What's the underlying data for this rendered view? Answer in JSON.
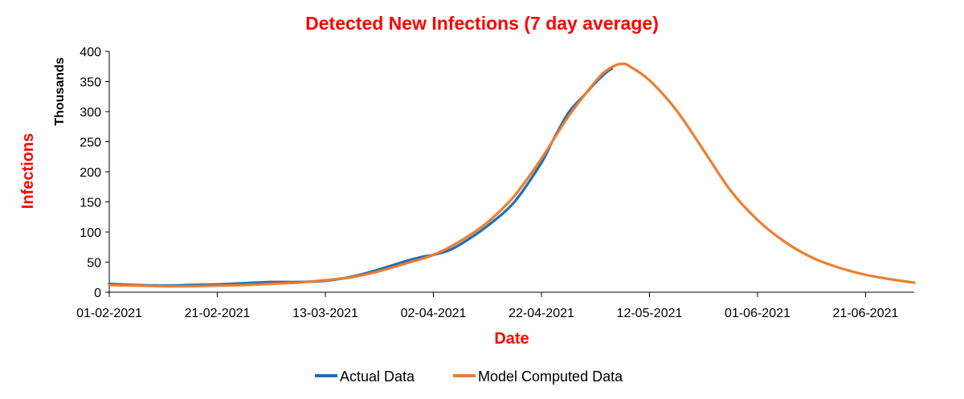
{
  "colors": {
    "title": "#ff0000",
    "axis_title": "#ff0000",
    "actual": "#1f6fb5",
    "model": "#ed7d31",
    "axis": "#000000"
  },
  "chart_data": {
    "type": "line",
    "title": "Detected New Infections (7 day average)",
    "xlabel": "Date",
    "ylabel": "Infections",
    "y_units_label": "Thousands",
    "x_start_date": "01-02-2021",
    "x_end_date": "30-06-2021",
    "x_unit": "days since 01-02-2021",
    "xlim": [
      0,
      149
    ],
    "ylim": [
      0,
      400
    ],
    "yticks": [
      0,
      50,
      100,
      150,
      200,
      250,
      300,
      350,
      400
    ],
    "xticks": [
      {
        "day": 0,
        "label": "01-02-2021"
      },
      {
        "day": 20,
        "label": "21-02-2021"
      },
      {
        "day": 40,
        "label": "13-03-2021"
      },
      {
        "day": 60,
        "label": "02-04-2021"
      },
      {
        "day": 80,
        "label": "22-04-2021"
      },
      {
        "day": 100,
        "label": "12-05-2021"
      },
      {
        "day": 120,
        "label": "01-06-2021"
      },
      {
        "day": 140,
        "label": "21-06-2021"
      }
    ],
    "grid": false,
    "legend_position": "bottom-center",
    "series": [
      {
        "name": "Actual Data",
        "color_key": "actual",
        "x": [
          0,
          5,
          10,
          15,
          20,
          25,
          30,
          35,
          40,
          45,
          50,
          55,
          58,
          60,
          63,
          66,
          70,
          75,
          80,
          82,
          85,
          88,
          90,
          92,
          93
        ],
        "y": [
          14,
          12,
          11,
          12,
          13,
          15,
          17,
          17,
          19,
          26,
          38,
          52,
          59,
          62,
          70,
          85,
          110,
          150,
          215,
          250,
          298,
          328,
          348,
          365,
          371
        ]
      },
      {
        "name": "Model Computed Data",
        "color_key": "model",
        "x": [
          0,
          5,
          10,
          15,
          20,
          25,
          30,
          35,
          40,
          45,
          50,
          55,
          60,
          65,
          70,
          75,
          80,
          85,
          90,
          92,
          94,
          95,
          96,
          100,
          105,
          110,
          115,
          120,
          125,
          130,
          135,
          140,
          145,
          149
        ],
        "y": [
          12,
          11,
          10,
          10,
          11,
          12,
          14,
          16,
          20,
          25,
          35,
          48,
          62,
          85,
          116,
          160,
          222,
          292,
          350,
          368,
          378,
          379,
          377,
          352,
          302,
          236,
          169,
          120,
          84,
          58,
          41,
          29,
          21,
          16
        ]
      }
    ]
  }
}
